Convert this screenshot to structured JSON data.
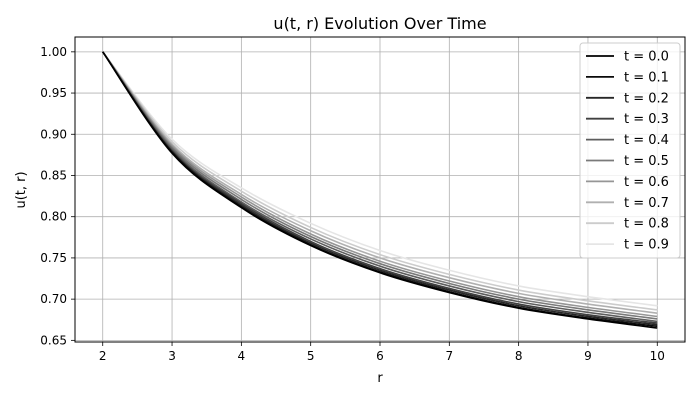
{
  "chart_data": {
    "type": "line",
    "title": "u(t, r) Evolution Over Time",
    "xlabel": "r",
    "ylabel": "u(t, r)",
    "xlim": [
      1.6,
      10.4
    ],
    "ylim": [
      0.648,
      1.018
    ],
    "xticks": [
      2,
      3,
      4,
      5,
      6,
      7,
      8,
      9,
      10
    ],
    "yticks": [
      0.65,
      0.7,
      0.75,
      0.8,
      0.85,
      0.9,
      0.95,
      1.0
    ],
    "grid": true,
    "legend_position": "top-right",
    "x": [
      2,
      3,
      4,
      5,
      6,
      7,
      8,
      9,
      10
    ],
    "series": [
      {
        "name": "t = 0.0",
        "color": "#000000",
        "values": [
          1.0,
          0.877,
          0.811,
          0.765,
          0.732,
          0.708,
          0.689,
          0.676,
          0.665
        ]
      },
      {
        "name": "t = 0.1",
        "color": "#0a0a0a",
        "values": [
          1.0,
          0.878,
          0.812,
          0.766,
          0.733,
          0.709,
          0.69,
          0.677,
          0.667
        ]
      },
      {
        "name": "t = 0.2",
        "color": "#262626",
        "values": [
          1.0,
          0.879,
          0.814,
          0.768,
          0.735,
          0.711,
          0.692,
          0.679,
          0.669
        ]
      },
      {
        "name": "t = 0.3",
        "color": "#404040",
        "values": [
          1.0,
          0.88,
          0.816,
          0.77,
          0.737,
          0.713,
          0.694,
          0.681,
          0.671
        ]
      },
      {
        "name": "t = 0.4",
        "color": "#5e5e5e",
        "values": [
          1.0,
          0.882,
          0.818,
          0.773,
          0.74,
          0.716,
          0.697,
          0.684,
          0.673
        ]
      },
      {
        "name": "t = 0.5",
        "color": "#7a7a7a",
        "values": [
          1.0,
          0.884,
          0.821,
          0.776,
          0.743,
          0.719,
          0.7,
          0.687,
          0.676
        ]
      },
      {
        "name": "t = 0.6",
        "color": "#969696",
        "values": [
          1.0,
          0.886,
          0.824,
          0.779,
          0.746,
          0.722,
          0.703,
          0.69,
          0.679
        ]
      },
      {
        "name": "t = 0.7",
        "color": "#b0b0b0",
        "values": [
          1.0,
          0.888,
          0.827,
          0.783,
          0.75,
          0.726,
          0.707,
          0.694,
          0.683
        ]
      },
      {
        "name": "t = 0.8",
        "color": "#cccccc",
        "values": [
          1.0,
          0.891,
          0.831,
          0.787,
          0.754,
          0.73,
          0.711,
          0.698,
          0.687
        ]
      },
      {
        "name": "t = 0.9",
        "color": "#e5e5e5",
        "values": [
          1.0,
          0.894,
          0.835,
          0.792,
          0.759,
          0.735,
          0.716,
          0.703,
          0.692
        ]
      }
    ]
  }
}
